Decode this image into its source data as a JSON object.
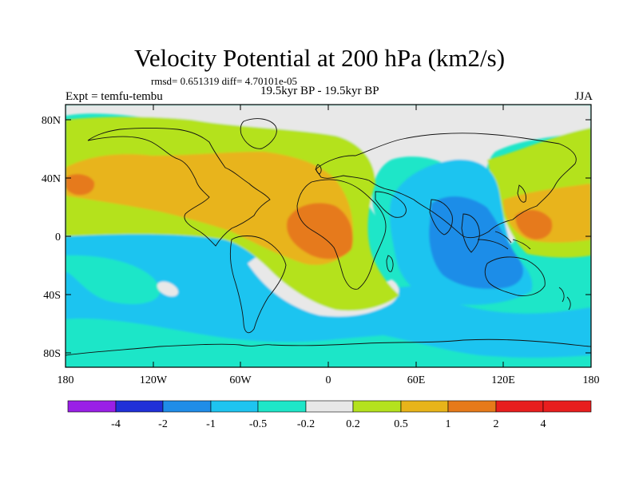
{
  "title": "Velocity Potential at 200 hPa (km2/s)",
  "stats": "rmsd= 0.651319 diff= 4.70101e-05",
  "left_label": "Expt = temfu-tembu",
  "center_label": "19.5kyr BP - 19.5kyr BP",
  "right_label": "JJA",
  "lat_ticks": [
    "80N",
    "40N",
    "0",
    "40S",
    "80S"
  ],
  "lon_ticks": [
    "180",
    "120W",
    "60W",
    "0",
    "60E",
    "120E",
    "180"
  ],
  "colorbar": {
    "labels": [
      "-4",
      "-2",
      "-1",
      "-0.5",
      "-0.2",
      "0.2",
      "0.5",
      "1",
      "2",
      "4"
    ],
    "colors": [
      "#9a1fe6",
      "#2030d8",
      "#1f8de8",
      "#1ec4f0",
      "#1ee6c8",
      "#e8e8e8",
      "#b4e21e",
      "#e8b41a",
      "#e67a1a",
      "#e81e1e"
    ]
  },
  "map_colors": {
    "ocean_base": "#1ee6c8",
    "neutral": "#e8e8e8",
    "light_positive": "#b4e21e",
    "positive": "#e8b41a",
    "strong_positive": "#e67a1a",
    "light_negative": "#1ec4f0",
    "negative": "#1f8de8"
  }
}
